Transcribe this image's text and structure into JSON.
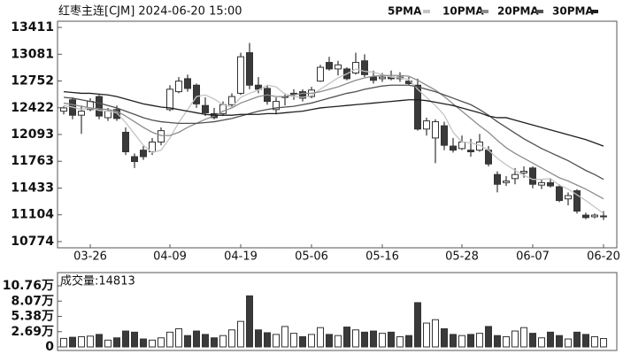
{
  "chart_data": [
    {
      "type": "candlestick",
      "title": "红枣主连[CJM] 2024-06-20 15:00",
      "categories": [
        null,
        null,
        null,
        "03-26",
        null,
        null,
        null,
        null,
        null,
        null,
        null,
        null,
        "04-09",
        null,
        null,
        null,
        null,
        null,
        null,
        null,
        "04-19",
        null,
        null,
        null,
        null,
        null,
        null,
        null,
        "05-06",
        null,
        null,
        null,
        null,
        null,
        null,
        null,
        "05-16",
        null,
        null,
        null,
        null,
        null,
        null,
        null,
        null,
        "05-28",
        null,
        null,
        null,
        null,
        null,
        null,
        null,
        "06-07",
        null,
        null,
        null,
        null,
        null,
        null,
        null,
        "06-20"
      ],
      "open": [
        12380,
        12520,
        12330,
        12400,
        12560,
        12300,
        12400,
        12120,
        11820,
        11900,
        11880,
        12000,
        12400,
        12620,
        12780,
        12700,
        12450,
        12350,
        12350,
        12460,
        12600,
        13100,
        12700,
        12660,
        12400,
        12550,
        12600,
        12620,
        12560,
        12750,
        12980,
        12900,
        12900,
        12850,
        13000,
        12800,
        12780,
        12800,
        12780,
        12750,
        12700,
        12160,
        12050,
        12200,
        11950,
        11920,
        11900,
        11900,
        11900,
        11600,
        11500,
        11550,
        11620,
        11680,
        11470,
        11500,
        11450,
        11300,
        11400,
        11100,
        11080,
        11080
      ],
      "high": [
        12440,
        12550,
        12450,
        12540,
        12580,
        12420,
        12450,
        12180,
        11860,
        11950,
        12050,
        12180,
        12700,
        12800,
        12830,
        12720,
        12550,
        12420,
        12500,
        12600,
        13100,
        13220,
        12800,
        12700,
        12550,
        12600,
        12650,
        12650,
        12680,
        12950,
        13050,
        13000,
        12920,
        13100,
        13080,
        12880,
        12850,
        12880,
        12860,
        12800,
        12780,
        12300,
        12280,
        12250,
        12050,
        12080,
        12040,
        12100,
        11950,
        11640,
        11580,
        11680,
        11700,
        11700,
        11540,
        11550,
        11480,
        11380,
        11420,
        11130,
        11120,
        11150
      ],
      "low": [
        12340,
        12280,
        12100,
        12380,
        12280,
        12260,
        12260,
        11840,
        11680,
        11780,
        11840,
        11960,
        12380,
        12600,
        12620,
        12420,
        12320,
        12280,
        12320,
        12430,
        12580,
        12650,
        12600,
        12460,
        12340,
        12450,
        12520,
        12500,
        12540,
        12740,
        12880,
        12820,
        12760,
        12830,
        12800,
        12720,
        12740,
        12760,
        12740,
        12700,
        12140,
        12080,
        11740,
        11900,
        11870,
        11900,
        11820,
        11880,
        11700,
        11380,
        11460,
        11480,
        11560,
        11430,
        11420,
        11440,
        11260,
        11220,
        11120,
        11050,
        11060,
        11040
      ],
      "close": [
        12420,
        12330,
        12380,
        12500,
        12320,
        12380,
        12290,
        11880,
        11760,
        11820,
        12000,
        12140,
        12650,
        12750,
        12660,
        12470,
        12360,
        12300,
        12460,
        12560,
        13050,
        12700,
        12650,
        12500,
        12500,
        12560,
        12600,
        12540,
        12640,
        12920,
        12900,
        12950,
        12780,
        12980,
        12830,
        12760,
        12800,
        12780,
        12800,
        12720,
        12160,
        12260,
        12250,
        11960,
        11900,
        12000,
        11880,
        12000,
        11730,
        11480,
        11520,
        11600,
        11640,
        11480,
        11500,
        11460,
        11280,
        11340,
        11150,
        11070,
        11100,
        11090
      ],
      "series": [
        {
          "name": "5PMA",
          "color": "#c4c4c4",
          "values": [
            12450,
            12430,
            12400,
            12420,
            12390,
            12380,
            12360,
            12240,
            12100,
            11960,
            11870,
            11900,
            12050,
            12240,
            12400,
            12560,
            12580,
            12530,
            12460,
            12430,
            12550,
            12600,
            12640,
            12700,
            12680,
            12590,
            12560,
            12550,
            12570,
            12650,
            12720,
            12790,
            12840,
            12900,
            12870,
            12860,
            12830,
            12800,
            12790,
            12770,
            12650,
            12550,
            12450,
            12330,
            12120,
            12000,
            11990,
            11960,
            11900,
            11800,
            11720,
            11650,
            11590,
            11540,
            11540,
            11550,
            11470,
            11420,
            11350,
            11280,
            11200,
            11120
          ]
        },
        {
          "name": "10PMA",
          "color": "#8c8c8c",
          "values": [
            12480,
            12460,
            12440,
            12420,
            12410,
            12400,
            12380,
            12320,
            12250,
            12180,
            12120,
            12080,
            12080,
            12120,
            12180,
            12230,
            12280,
            12320,
            12380,
            12420,
            12480,
            12520,
            12560,
            12580,
            12560,
            12560,
            12580,
            12600,
            12600,
            12620,
            12650,
            12680,
            12720,
            12760,
            12790,
            12810,
            12820,
            12820,
            12820,
            12810,
            12760,
            12700,
            12640,
            12560,
            12470,
            12380,
            12290,
            12200,
            12120,
            12020,
            11930,
            11860,
            11800,
            11740,
            11680,
            11620,
            11560,
            11520,
            11470,
            11420,
            11360,
            11300
          ]
        },
        {
          "name": "20PMA",
          "color": "#505050",
          "values": [
            12550,
            12540,
            12520,
            12500,
            12480,
            12450,
            12420,
            12380,
            12340,
            12300,
            12270,
            12250,
            12240,
            12230,
            12230,
            12230,
            12240,
            12250,
            12270,
            12290,
            12320,
            12350,
            12380,
            12400,
            12420,
            12430,
            12440,
            12460,
            12480,
            12510,
            12540,
            12570,
            12600,
            12620,
            12650,
            12670,
            12690,
            12700,
            12700,
            12700,
            12680,
            12650,
            12620,
            12580,
            12540,
            12500,
            12460,
            12400,
            12330,
            12250,
            12180,
            12110,
            12040,
            11980,
            11920,
            11870,
            11820,
            11770,
            11710,
            11650,
            11600,
            11540
          ]
        },
        {
          "name": "30PMA",
          "color": "#1e1e1e",
          "values": [
            12620,
            12610,
            12600,
            12600,
            12590,
            12580,
            12560,
            12530,
            12500,
            12470,
            12450,
            12430,
            12420,
            12400,
            12380,
            12360,
            12340,
            12330,
            12330,
            12330,
            12340,
            12340,
            12340,
            12350,
            12350,
            12360,
            12370,
            12380,
            12400,
            12420,
            12430,
            12440,
            12450,
            12460,
            12470,
            12480,
            12490,
            12500,
            12510,
            12520,
            12520,
            12510,
            12490,
            12470,
            12450,
            12420,
            12390,
            12360,
            12320,
            12300,
            12300,
            12270,
            12240,
            12210,
            12180,
            12150,
            12120,
            12090,
            12060,
            12030,
            11990,
            11950
          ]
        }
      ],
      "up_color": "#ffffff",
      "down_color": "#3a3a3a",
      "ylim": [
        10774,
        13411
      ],
      "yticks": [
        13411,
        13081,
        12752,
        12422,
        12093,
        11763,
        11433,
        11104,
        10774
      ]
    },
    {
      "type": "volume",
      "label": "成交量:14813",
      "values": [
        15000,
        17000,
        18000,
        19000,
        22000,
        12000,
        16000,
        28000,
        26000,
        14000,
        12000,
        16000,
        26000,
        32000,
        20000,
        28000,
        22000,
        16000,
        20000,
        30000,
        45000,
        90000,
        30000,
        25000,
        22000,
        36000,
        24000,
        18000,
        22000,
        34000,
        22000,
        20000,
        35000,
        30000,
        26000,
        28000,
        24000,
        26000,
        18000,
        20000,
        78000,
        42000,
        48000,
        32000,
        22000,
        20000,
        22000,
        24000,
        36000,
        20000,
        18000,
        28000,
        34000,
        24000,
        16000,
        26000,
        20000,
        14000,
        26000,
        22000,
        18000,
        14813
      ],
      "ylim": [
        0,
        107600
      ],
      "yticks": [
        {
          "value": 107600,
          "label": "10.76万"
        },
        {
          "value": 80700,
          "label": "8.07万"
        },
        {
          "value": 53800,
          "label": "5.38万"
        },
        {
          "value": 26900,
          "label": "2.69万"
        },
        0
      ]
    }
  ]
}
